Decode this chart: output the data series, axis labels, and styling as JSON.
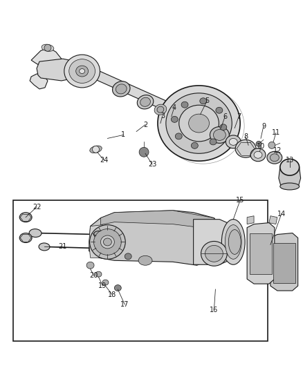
{
  "bg_color": "#ffffff",
  "line_color": "#1a1a1a",
  "fig_width": 4.38,
  "fig_height": 5.33,
  "dpi": 100,
  "gray_fill": "#c8c8c8",
  "gray_mid": "#b0b0b0",
  "gray_dark": "#888888",
  "gray_light": "#e0e0e0",
  "label_fontsize": 7.0
}
